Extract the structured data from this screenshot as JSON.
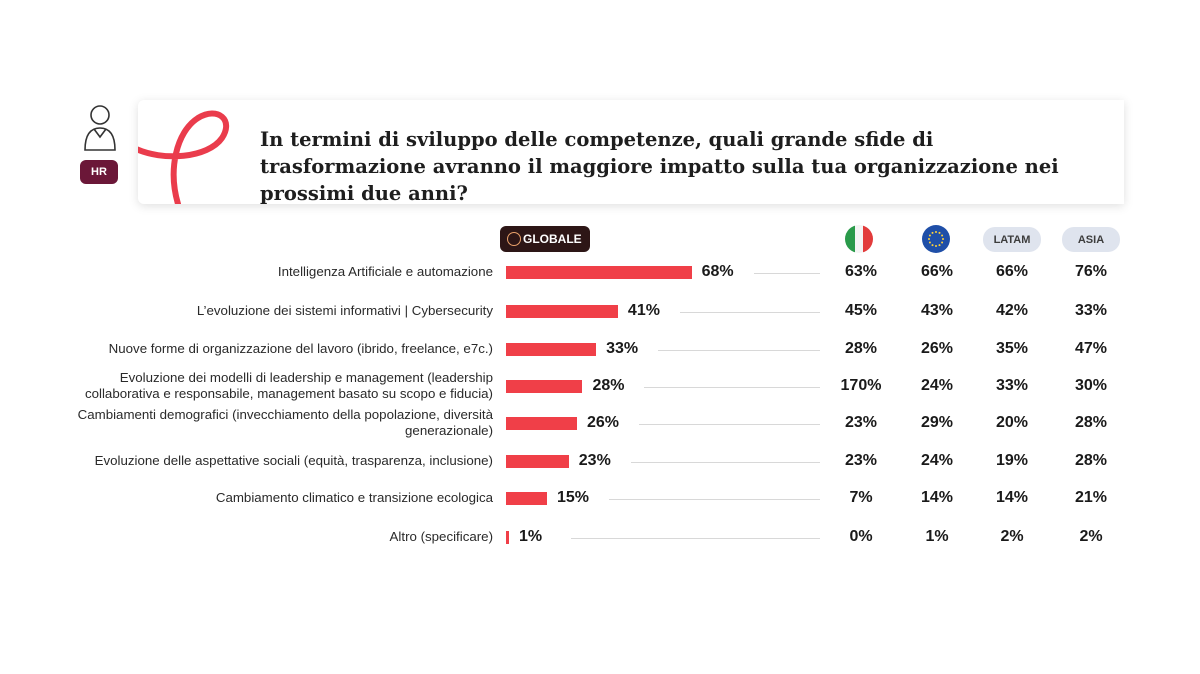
{
  "badge": "HR",
  "question": "In termini di sviluppo delle competenze, quali grande sfide di trasformazione avranno il maggiore impatto sulla tua organizzazione nei prossimi due anni?",
  "columns": {
    "globale": "GLOBALE",
    "italy_icon": "italy-flag-icon",
    "eu_icon": "eu-flag-icon",
    "latam": "LATAM",
    "asia": "ASIA"
  },
  "colors": {
    "bar": "#f03f48",
    "accent": "#6b1738",
    "pill": "#dfe4ee"
  },
  "chart_data": {
    "type": "bar",
    "orientation": "horizontal",
    "title": "In termini di sviluppo delle competenze, quali grande sfide di trasformazione avranno il maggiore impatto sulla tua organizzazione nei prossimi due anni?",
    "categories": [
      "Intelligenza Artificiale e automazione",
      "L’evoluzione dei sistemi informativi | Cybersecurity",
      "Nuove forme di organizzazione del lavoro (ibrido, freelance, e7c.)",
      "Evoluzione dei modelli di leadership e management (leadership\ncollaborativa e responsabile, management basato su scopo e fiducia)",
      "Cambiamenti demografici (invecchiamento della popolazione, diversità\ngenerazionale)",
      "Evoluzione delle aspettative sociali (equità, trasparenza, inclusione)",
      "Cambiamento climatico e transizione ecologica",
      "Altro (specificare)"
    ],
    "values": [
      68,
      41,
      33,
      28,
      26,
      23,
      15,
      1
    ],
    "value_labels": [
      "68%",
      "41%",
      "33%",
      "28%",
      "26%",
      "23%",
      "15%",
      "1%"
    ],
    "table": {
      "columns": [
        "italy",
        "eu",
        "LATAM",
        "ASIA"
      ],
      "rows": [
        [
          "63%",
          "66%",
          "66%",
          "76%"
        ],
        [
          "45%",
          "43%",
          "42%",
          "33%"
        ],
        [
          "28%",
          "26%",
          "35%",
          "47%"
        ],
        [
          "170%",
          "24%",
          "33%",
          "30%"
        ],
        [
          "23%",
          "29%",
          "20%",
          "28%"
        ],
        [
          "23%",
          "24%",
          "19%",
          "28%"
        ],
        [
          "7%",
          "14%",
          "14%",
          "21%"
        ],
        [
          "0%",
          "1%",
          "2%",
          "2%"
        ]
      ]
    }
  }
}
